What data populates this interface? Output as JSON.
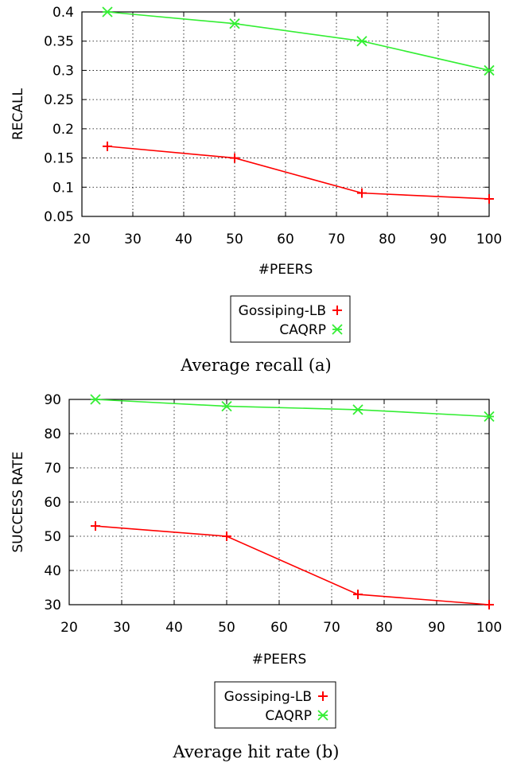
{
  "colors": {
    "red": "#ff0000",
    "green": "#33ee33",
    "grid": "#000000"
  },
  "chart_data": [
    {
      "type": "line",
      "caption": "Average recall (a)",
      "xlabel": "#PEERS",
      "ylabel": "RECALL",
      "xlim": [
        20,
        100
      ],
      "ylim": [
        0.05,
        0.4
      ],
      "x_ticks": [
        "20",
        "30",
        "40",
        "50",
        "60",
        "70",
        "80",
        "90",
        "100"
      ],
      "y_ticks": [
        "0.05",
        "0.1",
        "0.15",
        "0.2",
        "0.25",
        "0.3",
        "0.35",
        "0.4"
      ],
      "grid": true,
      "legend_position": "below-center",
      "series": [
        {
          "name": "Gossiping-LB",
          "marker": "plus",
          "color": "red",
          "x": [
            25,
            50,
            75,
            100
          ],
          "y": [
            0.17,
            0.15,
            0.09,
            0.08
          ]
        },
        {
          "name": "CAQRP",
          "marker": "star",
          "color": "green",
          "x": [
            25,
            50,
            75,
            100
          ],
          "y": [
            0.4,
            0.38,
            0.35,
            0.3
          ]
        }
      ]
    },
    {
      "type": "line",
      "caption": "Average hit rate (b)",
      "xlabel": "#PEERS",
      "ylabel": "SUCCESS RATE",
      "xlim": [
        20,
        100
      ],
      "ylim": [
        30,
        90
      ],
      "x_ticks": [
        "20",
        "30",
        "40",
        "50",
        "60",
        "70",
        "80",
        "90",
        "100"
      ],
      "y_ticks": [
        "30",
        "40",
        "50",
        "60",
        "70",
        "80",
        "90"
      ],
      "grid": true,
      "legend_position": "below-center",
      "series": [
        {
          "name": "Gossiping-LB",
          "marker": "plus",
          "color": "red",
          "x": [
            25,
            50,
            75,
            100
          ],
          "y": [
            53,
            50,
            33,
            30
          ]
        },
        {
          "name": "CAQRP",
          "marker": "star",
          "color": "green",
          "x": [
            25,
            50,
            75,
            100
          ],
          "y": [
            90,
            88,
            87,
            85
          ]
        }
      ]
    }
  ]
}
